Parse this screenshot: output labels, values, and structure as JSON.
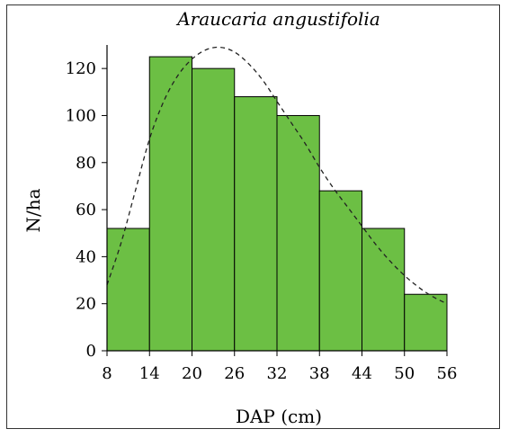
{
  "chart_data": {
    "type": "bar",
    "title": "Araucaria angustifolia",
    "xlabel": "DAP (cm)",
    "ylabel": "N/ha",
    "x_ticks": [
      "8",
      "14",
      "20",
      "26",
      "32",
      "38",
      "44",
      "50",
      "56"
    ],
    "y_ticks": [
      "0",
      "20",
      "40",
      "60",
      "80",
      "100",
      "120"
    ],
    "xlim": [
      8,
      56
    ],
    "ylim": [
      0,
      130
    ],
    "bins": [
      {
        "from": 8,
        "to": 14,
        "value": 52
      },
      {
        "from": 14,
        "to": 20,
        "value": 125
      },
      {
        "from": 20,
        "to": 26,
        "value": 120
      },
      {
        "from": 26,
        "to": 32,
        "value": 108
      },
      {
        "from": 32,
        "to": 38,
        "value": 100
      },
      {
        "from": 38,
        "to": 44,
        "value": 68
      },
      {
        "from": 44,
        "to": 50,
        "value": 52
      },
      {
        "from": 50,
        "to": 56,
        "value": 24
      }
    ],
    "curve": {
      "style": "dashed",
      "points": [
        [
          8,
          28
        ],
        [
          10,
          46
        ],
        [
          12,
          68
        ],
        [
          14,
          90
        ],
        [
          16,
          106
        ],
        [
          18,
          117
        ],
        [
          20,
          124
        ],
        [
          22,
          128
        ],
        [
          24,
          129
        ],
        [
          26,
          127
        ],
        [
          28,
          122
        ],
        [
          30,
          115
        ],
        [
          32,
          106
        ],
        [
          34,
          97
        ],
        [
          36,
          88
        ],
        [
          38,
          78
        ],
        [
          40,
          69
        ],
        [
          42,
          61
        ],
        [
          44,
          53
        ],
        [
          46,
          45
        ],
        [
          48,
          38
        ],
        [
          50,
          32
        ],
        [
          52,
          27
        ],
        [
          54,
          23
        ],
        [
          56,
          20
        ]
      ]
    },
    "bar_color": "#6cbf44",
    "bar_stroke": "#000000"
  }
}
